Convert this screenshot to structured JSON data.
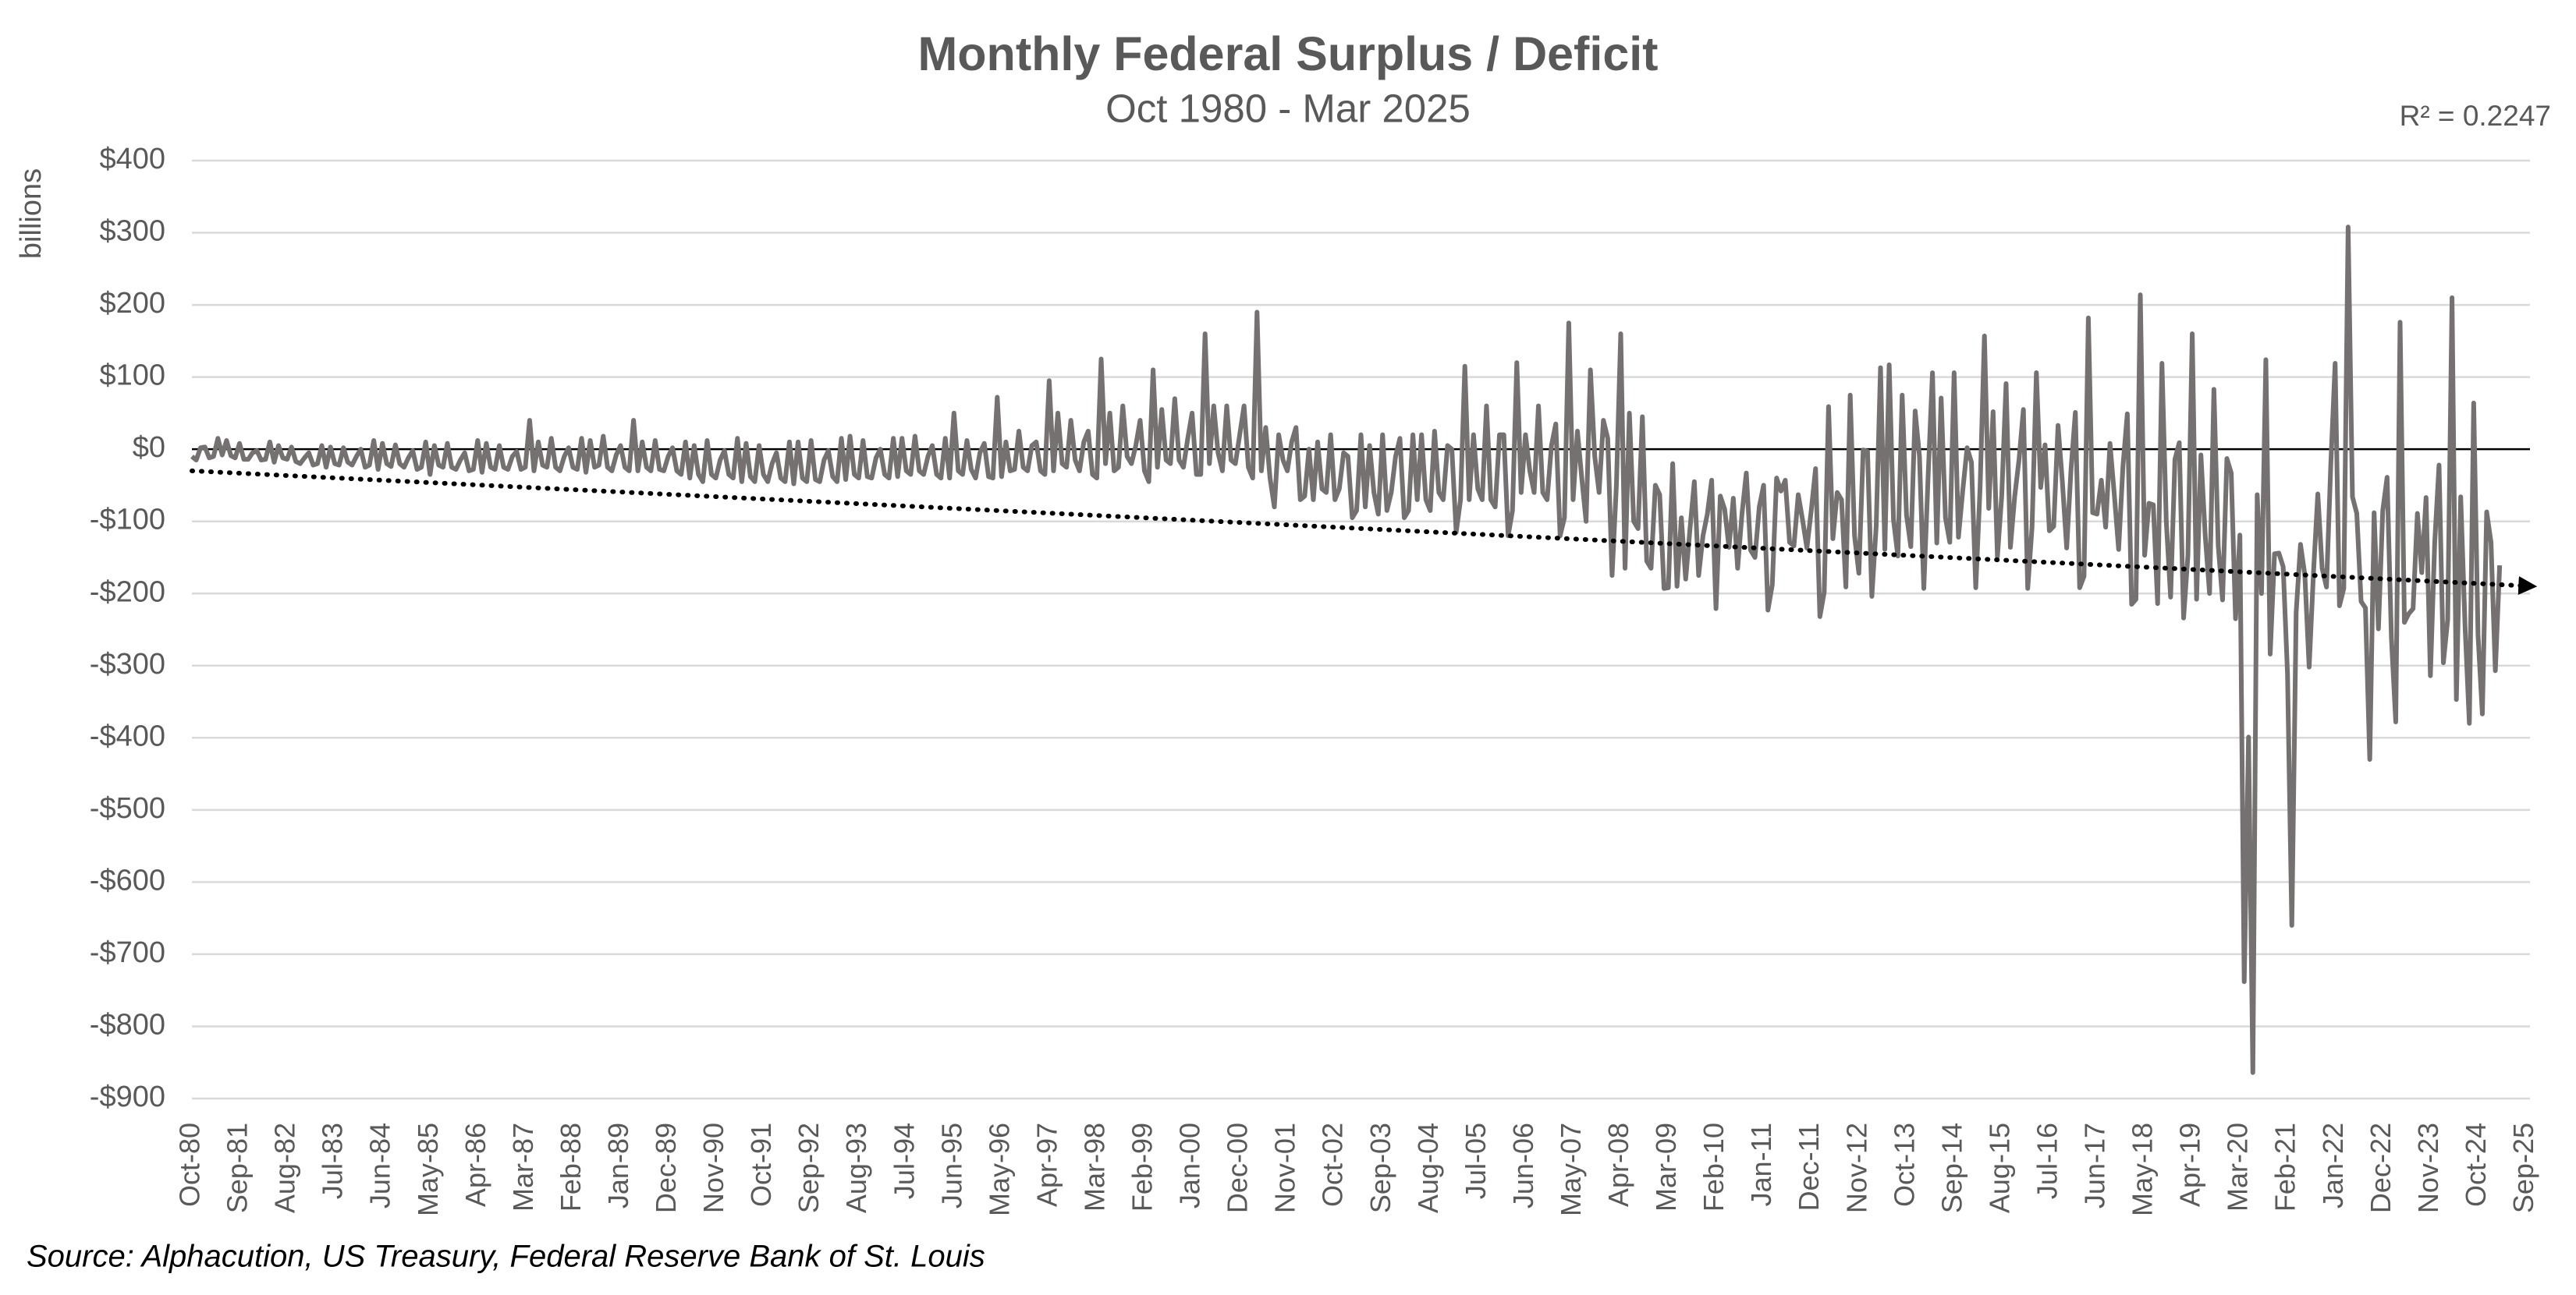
{
  "chart_data": {
    "type": "line",
    "title": "Monthly Federal Surplus / Deficit",
    "subtitle": "Oct 1980 - Mar 2025",
    "y_label": "billions",
    "source": "Source: Alphacution, US Treasury, Federal Reserve Bank of St. Louis",
    "color": "#767171",
    "grid": true,
    "ylim": [
      -900,
      400
    ],
    "yticks": [
      {
        "value": -900,
        "label": "-$900"
      },
      {
        "value": -800,
        "label": "-$800"
      },
      {
        "value": -700,
        "label": "-$700"
      },
      {
        "value": -600,
        "label": "-$600"
      },
      {
        "value": -500,
        "label": "-$500"
      },
      {
        "value": -400,
        "label": "-$400"
      },
      {
        "value": -300,
        "label": "-$300"
      },
      {
        "value": -200,
        "label": "-$200"
      },
      {
        "value": -100,
        "label": "-$100"
      },
      {
        "value": 0,
        "label": "$0"
      },
      {
        "value": 100,
        "label": "$100"
      },
      {
        "value": 200,
        "label": "$200"
      },
      {
        "value": 300,
        "label": "$300"
      },
      {
        "value": 400,
        "label": "$400"
      }
    ],
    "trendline": {
      "start": -30,
      "end": -190,
      "color": "#000000",
      "label": "R² = 0.2247"
    },
    "categories": [
      "Oct-80",
      null,
      null,
      null,
      null,
      null,
      null,
      null,
      null,
      null,
      null,
      "Sep-81",
      null,
      null,
      null,
      null,
      null,
      null,
      null,
      null,
      null,
      null,
      "Aug-82",
      null,
      null,
      null,
      null,
      null,
      null,
      null,
      null,
      null,
      null,
      "Jul-83",
      null,
      null,
      null,
      null,
      null,
      null,
      null,
      null,
      null,
      null,
      "Jun-84",
      null,
      null,
      null,
      null,
      null,
      null,
      null,
      null,
      null,
      null,
      "May-85",
      null,
      null,
      null,
      null,
      null,
      null,
      null,
      null,
      null,
      null,
      "Apr-86",
      null,
      null,
      null,
      null,
      null,
      null,
      null,
      null,
      null,
      null,
      "Mar-87",
      null,
      null,
      null,
      null,
      null,
      null,
      null,
      null,
      null,
      null,
      "Feb-88",
      null,
      null,
      null,
      null,
      null,
      null,
      null,
      null,
      null,
      null,
      "Jan-89",
      null,
      null,
      null,
      null,
      null,
      null,
      null,
      null,
      null,
      null,
      "Dec-89",
      null,
      null,
      null,
      null,
      null,
      null,
      null,
      null,
      null,
      null,
      "Nov-90",
      null,
      null,
      null,
      null,
      null,
      null,
      null,
      null,
      null,
      null,
      "Oct-91",
      null,
      null,
      null,
      null,
      null,
      null,
      null,
      null,
      null,
      null,
      "Sep-92",
      null,
      null,
      null,
      null,
      null,
      null,
      null,
      null,
      null,
      null,
      "Aug-93",
      null,
      null,
      null,
      null,
      null,
      null,
      null,
      null,
      null,
      null,
      "Jul-94",
      null,
      null,
      null,
      null,
      null,
      null,
      null,
      null,
      null,
      null,
      "Jun-95",
      null,
      null,
      null,
      null,
      null,
      null,
      null,
      null,
      null,
      null,
      "May-96",
      null,
      null,
      null,
      null,
      null,
      null,
      null,
      null,
      null,
      null,
      "Apr-97",
      null,
      null,
      null,
      null,
      null,
      null,
      null,
      null,
      null,
      null,
      "Mar-98",
      null,
      null,
      null,
      null,
      null,
      null,
      null,
      null,
      null,
      null,
      "Feb-99",
      null,
      null,
      null,
      null,
      null,
      null,
      null,
      null,
      null,
      null,
      "Jan-00",
      null,
      null,
      null,
      null,
      null,
      null,
      null,
      null,
      null,
      null,
      "Dec-00",
      null,
      null,
      null,
      null,
      null,
      null,
      null,
      null,
      null,
      null,
      "Nov-01",
      null,
      null,
      null,
      null,
      null,
      null,
      null,
      null,
      null,
      null,
      "Oct-02",
      null,
      null,
      null,
      null,
      null,
      null,
      null,
      null,
      null,
      null,
      "Sep-03",
      null,
      null,
      null,
      null,
      null,
      null,
      null,
      null,
      null,
      null,
      "Aug-04",
      null,
      null,
      null,
      null,
      null,
      null,
      null,
      null,
      null,
      null,
      "Jul-05",
      null,
      null,
      null,
      null,
      null,
      null,
      null,
      null,
      null,
      null,
      "Jun-06",
      null,
      null,
      null,
      null,
      null,
      null,
      null,
      null,
      null,
      null,
      "May-07",
      null,
      null,
      null,
      null,
      null,
      null,
      null,
      null,
      null,
      null,
      "Apr-08",
      null,
      null,
      null,
      null,
      null,
      null,
      null,
      null,
      null,
      null,
      "Mar-09",
      null,
      null,
      null,
      null,
      null,
      null,
      null,
      null,
      null,
      null,
      "Feb-10",
      null,
      null,
      null,
      null,
      null,
      null,
      null,
      null,
      null,
      null,
      "Jan-11",
      null,
      null,
      null,
      null,
      null,
      null,
      null,
      null,
      null,
      null,
      "Dec-11",
      null,
      null,
      null,
      null,
      null,
      null,
      null,
      null,
      null,
      null,
      "Nov-12",
      null,
      null,
      null,
      null,
      null,
      null,
      null,
      null,
      null,
      null,
      "Oct-13",
      null,
      null,
      null,
      null,
      null,
      null,
      null,
      null,
      null,
      null,
      "Sep-14",
      null,
      null,
      null,
      null,
      null,
      null,
      null,
      null,
      null,
      null,
      "Aug-15",
      null,
      null,
      null,
      null,
      null,
      null,
      null,
      null,
      null,
      null,
      "Jul-16",
      null,
      null,
      null,
      null,
      null,
      null,
      null,
      null,
      null,
      null,
      "Jun-17",
      null,
      null,
      null,
      null,
      null,
      null,
      null,
      null,
      null,
      null,
      "May-18",
      null,
      null,
      null,
      null,
      null,
      null,
      null,
      null,
      null,
      null,
      "Apr-19",
      null,
      null,
      null,
      null,
      null,
      null,
      null,
      null,
      null,
      null,
      "Mar-20",
      null,
      null,
      null,
      null,
      null,
      null,
      null,
      null,
      null,
      null,
      "Feb-21",
      null,
      null,
      null,
      null,
      null,
      null,
      null,
      null,
      null,
      null,
      "Jan-22",
      null,
      null,
      null,
      null,
      null,
      null,
      null,
      null,
      null,
      null,
      "Dec-22",
      null,
      null,
      null,
      null,
      null,
      null,
      null,
      null,
      null,
      null,
      "Nov-23",
      null,
      null,
      null,
      null,
      null,
      null,
      null,
      null,
      null,
      null,
      "Oct-24",
      null,
      null,
      null,
      null,
      null,
      null,
      null,
      null,
      null,
      null,
      "Sep-25"
    ],
    "values": [
      -10,
      -15,
      2,
      3,
      -12,
      -10,
      15,
      -8,
      12,
      -9,
      -12,
      8,
      -14,
      -14,
      -5,
      -2,
      -15,
      -14,
      10,
      -18,
      5,
      -12,
      -14,
      3,
      -17,
      -20,
      -12,
      -5,
      -22,
      -20,
      5,
      -25,
      3,
      -20,
      -22,
      2,
      -18,
      -22,
      -10,
      0,
      -25,
      -22,
      12,
      -28,
      8,
      -20,
      -24,
      6,
      -20,
      -25,
      -12,
      -2,
      -28,
      -25,
      10,
      -35,
      5,
      -22,
      -25,
      8,
      -25,
      -28,
      -15,
      -5,
      -30,
      -28,
      12,
      -32,
      8,
      -25,
      -28,
      5,
      -25,
      -28,
      -10,
      -3,
      -28,
      -25,
      40,
      -30,
      10,
      -22,
      -25,
      15,
      -25,
      -30,
      -10,
      2,
      -25,
      -28,
      15,
      -32,
      12,
      -25,
      -22,
      18,
      -25,
      -30,
      -8,
      5,
      -25,
      -30,
      40,
      -30,
      10,
      -25,
      -30,
      12,
      -28,
      -30,
      -10,
      2,
      -30,
      -35,
      10,
      -40,
      5,
      -35,
      -45,
      12,
      -35,
      -40,
      -15,
      -2,
      -35,
      -40,
      15,
      -45,
      8,
      -38,
      -45,
      5,
      -35,
      -45,
      -20,
      -5,
      -40,
      -45,
      10,
      -48,
      10,
      -40,
      -45,
      12,
      -42,
      -45,
      -15,
      -2,
      -38,
      -45,
      15,
      -42,
      18,
      -35,
      -40,
      12,
      -38,
      -40,
      -12,
      0,
      -35,
      -40,
      15,
      -38,
      15,
      -30,
      -35,
      18,
      -30,
      -35,
      -10,
      5,
      -35,
      -40,
      15,
      -40,
      50,
      -30,
      -35,
      12,
      -28,
      -40,
      -5,
      8,
      -38,
      -40,
      72,
      -38,
      10,
      -30,
      -28,
      25,
      -25,
      -30,
      5,
      10,
      -30,
      -35,
      95,
      -30,
      50,
      -20,
      -25,
      40,
      -15,
      -30,
      10,
      25,
      -35,
      -40,
      125,
      -20,
      50,
      -30,
      -25,
      60,
      -10,
      -20,
      5,
      40,
      -30,
      -45,
      110,
      -25,
      55,
      -15,
      -20,
      70,
      -15,
      -25,
      15,
      50,
      -35,
      -35,
      160,
      -20,
      60,
      -5,
      -30,
      60,
      -15,
      -20,
      20,
      60,
      -25,
      -40,
      190,
      -30,
      30,
      -40,
      -80,
      20,
      -15,
      -30,
      10,
      30,
      -70,
      -65,
      0,
      -70,
      10,
      -55,
      -60,
      20,
      -70,
      -55,
      -5,
      -10,
      -95,
      -85,
      20,
      -80,
      5,
      -60,
      -90,
      20,
      -85,
      -60,
      -10,
      15,
      -95,
      -85,
      20,
      -70,
      20,
      -70,
      -85,
      25,
      -60,
      -70,
      5,
      0,
      -115,
      -70,
      115,
      -70,
      20,
      -55,
      -70,
      60,
      -70,
      -80,
      20,
      20,
      -120,
      -85,
      120,
      -60,
      20,
      -30,
      -60,
      60,
      -60,
      -70,
      5,
      35,
      -120,
      -95,
      175,
      -70,
      25,
      -40,
      -100,
      110,
      -10,
      -60,
      40,
      15,
      -175,
      -50,
      160,
      -165,
      50,
      -100,
      -110,
      45,
      -155,
      -165,
      -50,
      -63,
      -193,
      -192,
      -20,
      -190,
      -95,
      -180,
      -110,
      -45,
      -175,
      -120,
      -90,
      -43,
      -221,
      -65,
      -83,
      -136,
      -68,
      -165,
      -90,
      -33,
      -140,
      -150,
      -80,
      -50,
      -223,
      -188,
      -40,
      -58,
      -43,
      -129,
      -134,
      -63,
      -98,
      -137,
      -85,
      -27,
      -232,
      -198,
      59,
      -124,
      -60,
      -70,
      -191,
      75,
      -120,
      -172,
      -1,
      -3,
      -204,
      -107,
      113,
      -139,
      117,
      -98,
      -148,
      75,
      -91,
      -135,
      53,
      -10,
      -193,
      -37,
      106,
      -130,
      71,
      -95,
      -129,
      106,
      -122,
      -57,
      2,
      -18,
      -192,
      -53,
      157,
      -82,
      52,
      -149,
      -64,
      91,
      -136,
      -65,
      -14,
      55,
      -193,
      -108,
      106,
      -53,
      6,
      -113,
      -107,
      33,
      -45,
      -137,
      -28,
      51,
      -192,
      -176,
      182,
      -88,
      -90,
      -43,
      -108,
      8,
      -63,
      -139,
      -23,
      49,
      -215,
      -208,
      214,
      -147,
      -75,
      -77,
      -214,
      119,
      -100,
      -205,
      -14,
      9,
      -234,
      -147,
      160,
      -208,
      -8,
      -120,
      -200,
      83,
      -134,
      -209,
      -13,
      -33,
      -235,
      -119,
      -738,
      -399,
      -864,
      -63,
      -200,
      124,
      -284,
      -145,
      -144,
      -163,
      -311,
      -660,
      -226,
      -132,
      -174,
      -302,
      -171,
      -62,
      -165,
      -191,
      -21,
      119,
      -217,
      -193,
      308,
      -66,
      -89,
      -211,
      -220,
      -430,
      -88,
      -249,
      -85,
      -39,
      -262,
      -378,
      176,
      -240,
      -228,
      -221,
      -89,
      -171,
      -67,
      -314,
      -129,
      -22,
      -296,
      -236,
      210,
      -347,
      -66,
      -244,
      -380,
      64,
      -257,
      -367,
      -87,
      -129,
      -307,
      -161,
      null,
      null,
      null,
      null,
      null,
      null
    ]
  }
}
